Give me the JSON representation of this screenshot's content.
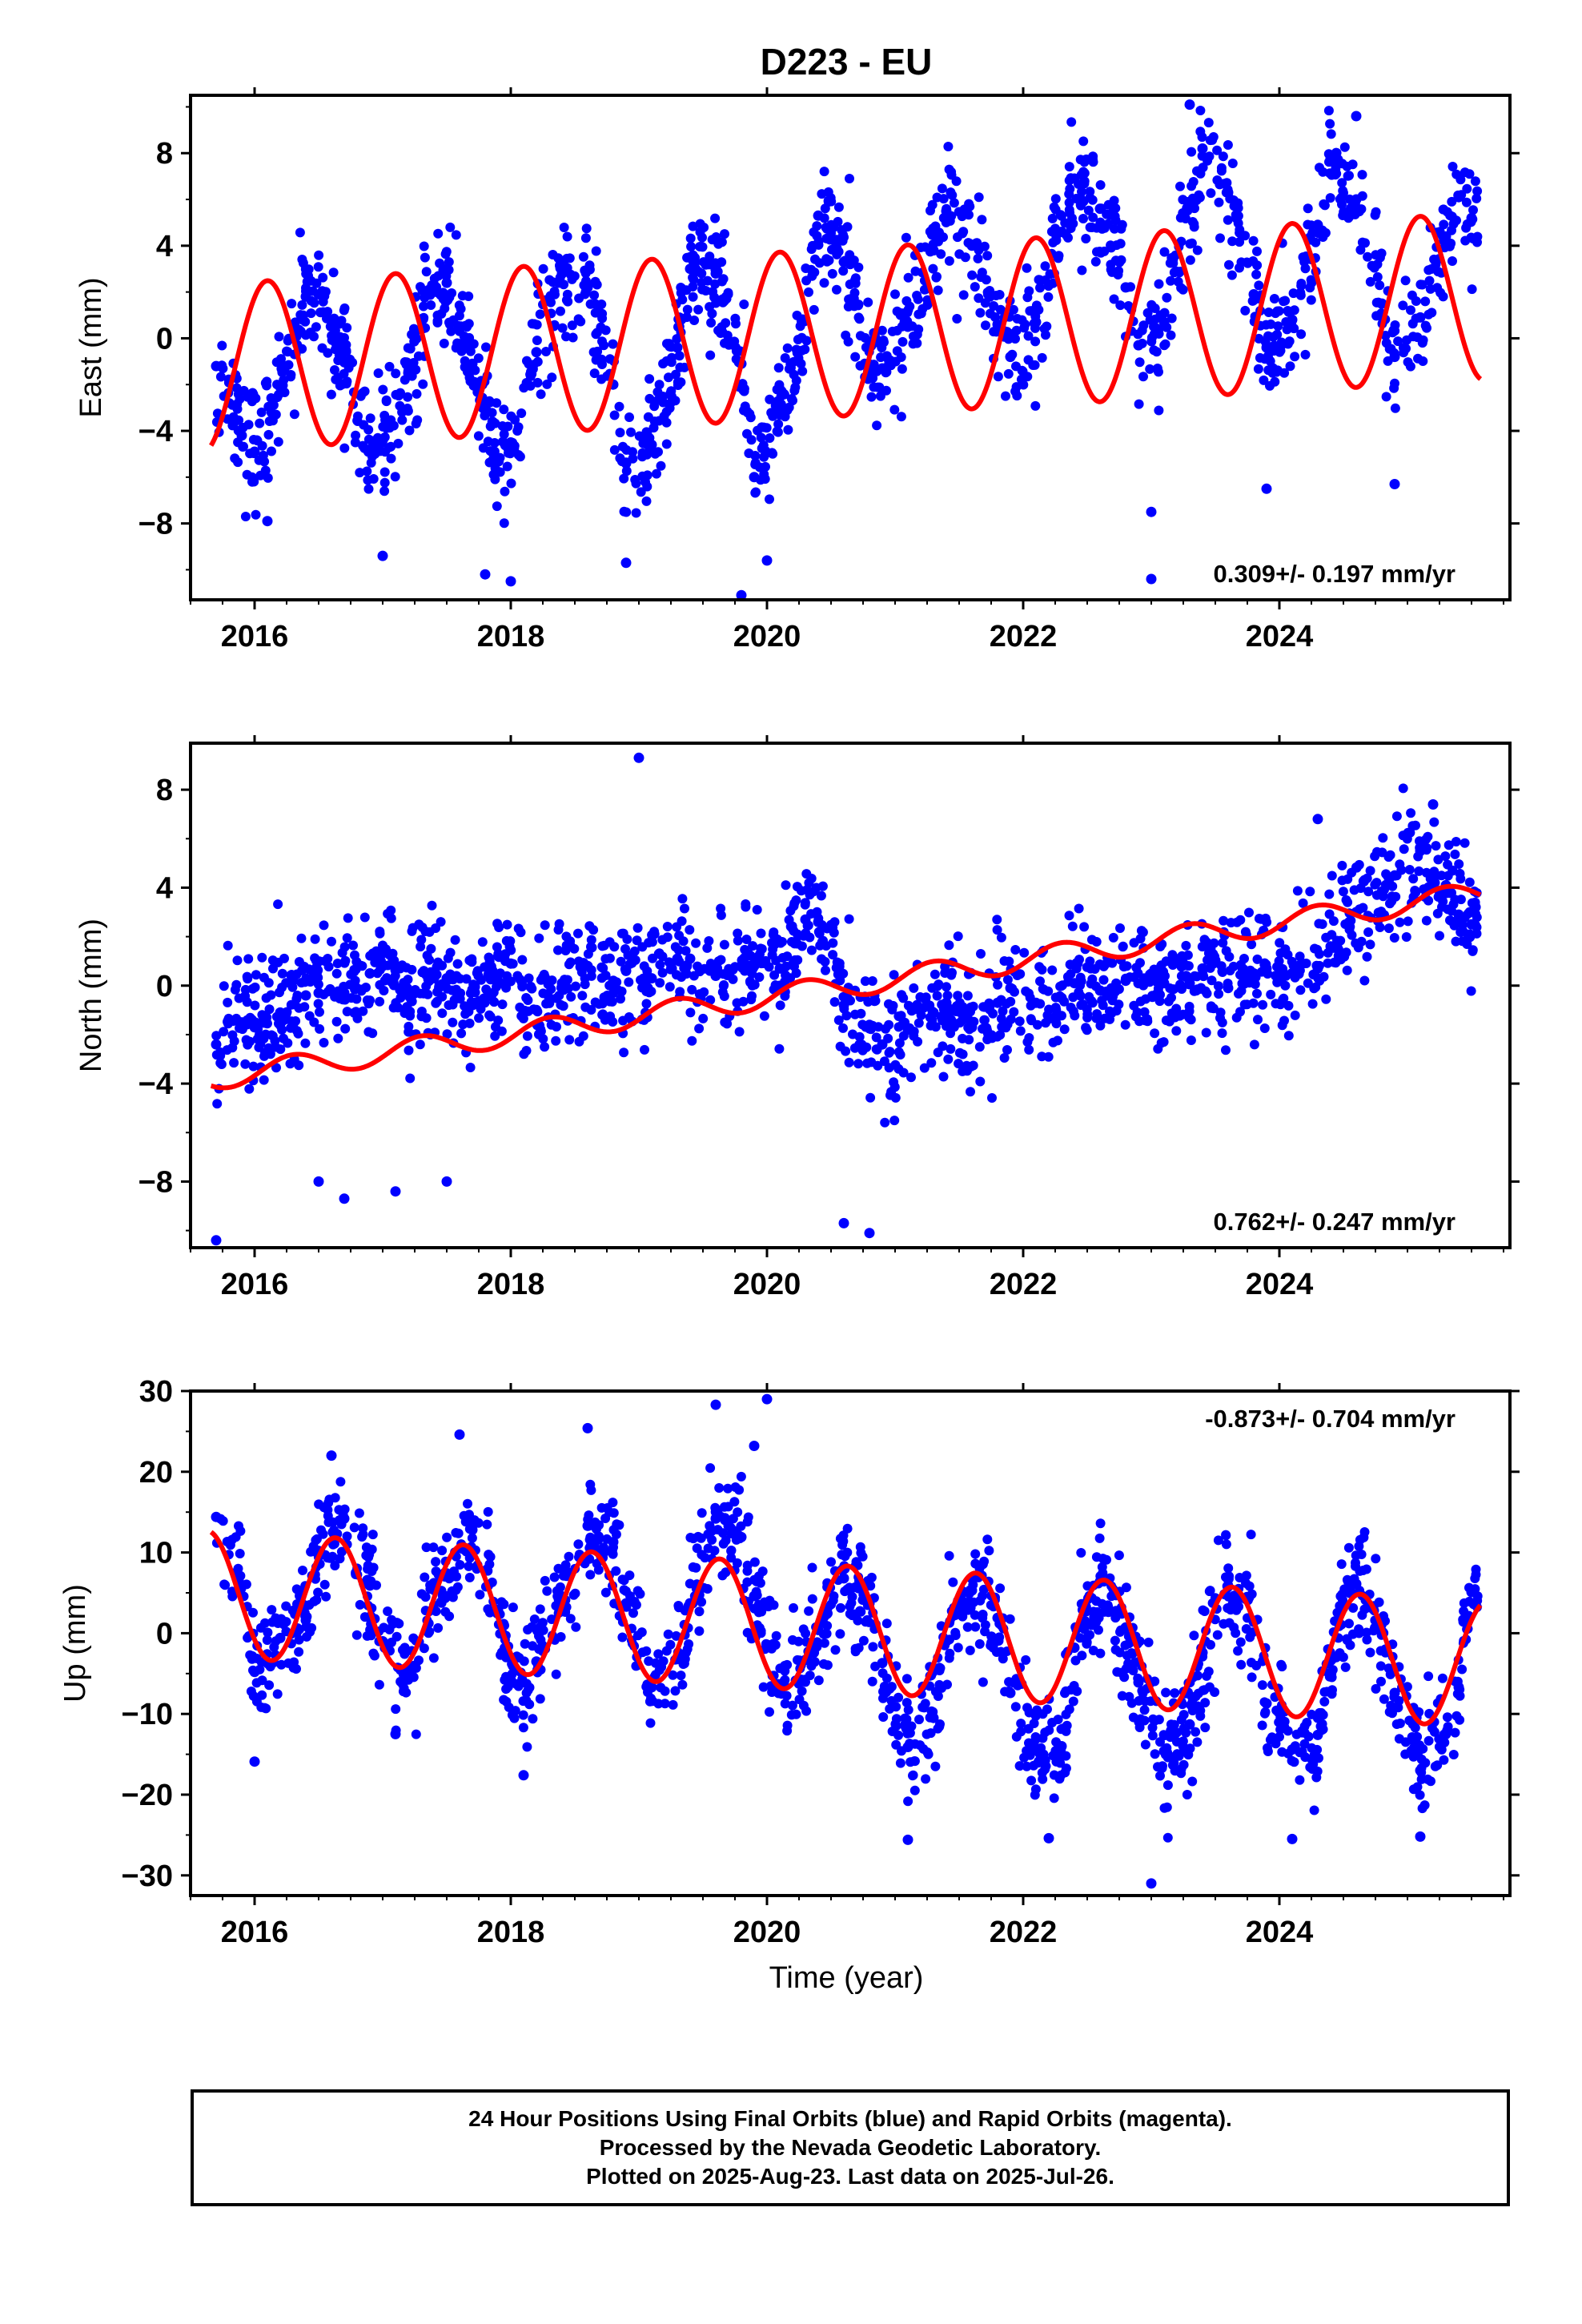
{
  "title": "D223 - EU",
  "xlabel": "Time (year)",
  "colors": {
    "points": "#0000ff",
    "fit": "#ff0000",
    "axes": "#000000"
  },
  "footer": {
    "line1": "24 Hour Positions Using Final Orbits (blue) and Rapid Orbits (magenta).",
    "line2": "Processed by the Nevada Geodetic Laboratory.",
    "line3": "Plotted on 2025-Aug-23. Last data on 2025-Jul-26."
  },
  "chart_data": [
    {
      "type": "scatter",
      "component": "east",
      "ylabel": "East (mm)",
      "xlim": [
        2015.5,
        2025.8
      ],
      "ylim": [
        -11.3,
        10.5
      ],
      "xticks": [
        2016,
        2018,
        2020,
        2022,
        2024
      ],
      "yticks": [
        -8,
        -4,
        0,
        4,
        8
      ],
      "rate_text": "0.309+/- 0.197 mm/yr",
      "rate_position": "bottom-right",
      "grid": false,
      "fit_model": {
        "trend_offset": -1.26,
        "trend_slope": 0.309,
        "t0": 2015.68,
        "amp": [
          -3.62,
          -3.62
        ],
        "phase": [
          0.6,
          0.6
        ],
        "decimate": 1.0
      },
      "series": [
        {
          "values": [
            [
              2015.7,
              -1.2
            ],
            [
              2015.9,
              -4.2
            ],
            [
              2016.0,
              -4.9
            ],
            [
              2016.2,
              -2.1
            ],
            [
              2016.4,
              1.8
            ],
            [
              2016.5,
              1.9
            ],
            [
              2016.7,
              -1.0
            ],
            [
              2016.9,
              -4.8
            ],
            [
              2017.0,
              -4.4
            ],
            [
              2017.2,
              -1.5
            ],
            [
              2017.4,
              2.3
            ],
            [
              2017.5,
              2.4
            ],
            [
              2017.7,
              -1.1
            ],
            [
              2017.9,
              -5.2
            ],
            [
              2018.0,
              -4.5
            ],
            [
              2018.2,
              -0.6
            ],
            [
              2018.4,
              2.8
            ],
            [
              2018.6,
              2.2
            ],
            [
              2018.8,
              -2.0
            ],
            [
              2018.9,
              -5.4
            ],
            [
              2019.1,
              -4.6
            ],
            [
              2019.3,
              -0.4
            ],
            [
              2019.4,
              3.0
            ],
            [
              2019.6,
              2.8
            ],
            [
              2019.8,
              -1.1
            ],
            [
              2019.9,
              -6.0
            ],
            [
              2020.1,
              -3.3
            ],
            [
              2020.3,
              0.8
            ],
            [
              2020.4,
              5.3
            ],
            [
              2020.6,
              3.3
            ],
            [
              2020.8,
              -0.4
            ],
            [
              2020.9,
              -1.3
            ],
            [
              2021.1,
              0.5
            ],
            [
              2021.3,
              3.8
            ],
            [
              2021.4,
              5.5
            ],
            [
              2021.6,
              4.0
            ],
            [
              2021.8,
              0.6
            ],
            [
              2021.9,
              -0.8
            ],
            [
              2022.1,
              0.7
            ],
            [
              2022.3,
              4.6
            ],
            [
              2022.4,
              6.9
            ],
            [
              2022.6,
              5.6
            ],
            [
              2022.8,
              2.2
            ],
            [
              2022.9,
              -0.3
            ],
            [
              2023.1,
              0.7
            ],
            [
              2023.3,
              5.7
            ],
            [
              2023.4,
              8.2
            ],
            [
              2023.6,
              6.3
            ],
            [
              2023.8,
              1.9
            ],
            [
              2023.9,
              -0.4
            ],
            [
              2024.1,
              0.8
            ],
            [
              2024.3,
              4.9
            ],
            [
              2024.4,
              7.8
            ],
            [
              2024.6,
              6.0
            ],
            [
              2024.8,
              1.5
            ],
            [
              2024.9,
              -0.8
            ],
            [
              2025.1,
              0.9
            ],
            [
              2025.3,
              4.4
            ],
            [
              2025.4,
              6.1
            ],
            [
              2025.5,
              5.2
            ],
            [
              2016.1,
              -7.9
            ],
            [
              2017.0,
              -9.4
            ],
            [
              2017.8,
              -10.2
            ],
            [
              2018.0,
              -10.5
            ],
            [
              2018.9,
              -9.7
            ],
            [
              2019.8,
              -11.1
            ],
            [
              2020.0,
              -9.6
            ],
            [
              2023.0,
              -7.5
            ],
            [
              2023.0,
              -10.4
            ],
            [
              2023.9,
              -6.5
            ],
            [
              2024.9,
              -6.3
            ],
            [
              2019.4,
              3.5
            ],
            [
              2023.3,
              10.1
            ],
            [
              2024.6,
              9.6
            ]
          ]
        }
      ]
    },
    {
      "type": "scatter",
      "component": "north",
      "ylabel": "North (mm)",
      "xlim": [
        2015.5,
        2025.8
      ],
      "ylim": [
        -10.7,
        9.9
      ],
      "xticks": [
        2016,
        2018,
        2020,
        2022,
        2024
      ],
      "yticks": [
        -8,
        -4,
        0,
        4,
        8
      ],
      "rate_text": "0.762+/- 0.247 mm/yr",
      "rate_position": "bottom-right",
      "grid": false,
      "fit_model": {
        "trend_offset": -3.77,
        "trend_slope": 0.762,
        "t0": 2015.68,
        "amp": [
          -0.48,
          -0.48
        ],
        "phase": [
          0.8,
          0.8
        ],
        "decimate": 1.0
      },
      "series": [
        {
          "values": [
            [
              2015.7,
              -2.4
            ],
            [
              2015.9,
              -1.5
            ],
            [
              2016.0,
              -1.7
            ],
            [
              2016.2,
              -1.1
            ],
            [
              2016.4,
              -0.4
            ],
            [
              2016.5,
              -0.3
            ],
            [
              2016.7,
              -0.3
            ],
            [
              2016.9,
              0.5
            ],
            [
              2017.0,
              0.8
            ],
            [
              2017.2,
              -0.4
            ],
            [
              2017.4,
              0.3
            ],
            [
              2017.5,
              0.3
            ],
            [
              2017.7,
              -0.8
            ],
            [
              2017.9,
              0.2
            ],
            [
              2018.0,
              0.9
            ],
            [
              2018.2,
              -1.0
            ],
            [
              2018.4,
              0.1
            ],
            [
              2018.6,
              0.8
            ],
            [
              2018.8,
              0.2
            ],
            [
              2018.9,
              0.6
            ],
            [
              2019.1,
              0.3
            ],
            [
              2019.3,
              1.1
            ],
            [
              2019.4,
              1.1
            ],
            [
              2019.6,
              0.4
            ],
            [
              2019.8,
              0.8
            ],
            [
              2019.9,
              0.8
            ],
            [
              2020.1,
              0.7
            ],
            [
              2020.3,
              2.7
            ],
            [
              2020.4,
              2.6
            ],
            [
              2020.6,
              -0.8
            ],
            [
              2020.8,
              -1.6
            ],
            [
              2020.9,
              -2.4
            ],
            [
              2021.1,
              -1.8
            ],
            [
              2021.3,
              -1.1
            ],
            [
              2021.4,
              -0.7
            ],
            [
              2021.6,
              -1.7
            ],
            [
              2021.8,
              -0.7
            ],
            [
              2021.9,
              -0.1
            ],
            [
              2022.1,
              -0.7
            ],
            [
              2022.3,
              -0.5
            ],
            [
              2022.4,
              0.1
            ],
            [
              2022.6,
              -0.2
            ],
            [
              2022.8,
              0.2
            ],
            [
              2022.9,
              0.1
            ],
            [
              2023.1,
              0.1
            ],
            [
              2023.3,
              0.1
            ],
            [
              2023.4,
              0.7
            ],
            [
              2023.6,
              -0.1
            ],
            [
              2023.8,
              0.5
            ],
            [
              2023.9,
              0.7
            ],
            [
              2024.1,
              0.5
            ],
            [
              2024.3,
              0.7
            ],
            [
              2024.4,
              1.6
            ],
            [
              2024.6,
              3.0
            ],
            [
              2024.8,
              3.8
            ],
            [
              2024.9,
              4.5
            ],
            [
              2025.1,
              5.5
            ],
            [
              2025.3,
              4.1
            ],
            [
              2025.4,
              2.9
            ],
            [
              2025.5,
              2.5
            ],
            [
              2015.7,
              -10.4
            ],
            [
              2016.5,
              -8.0
            ],
            [
              2016.7,
              -8.7
            ],
            [
              2017.1,
              -8.4
            ],
            [
              2017.5,
              -8.0
            ],
            [
              2020.6,
              -9.7
            ],
            [
              2020.8,
              -10.1
            ],
            [
              2019.0,
              9.3
            ],
            [
              2024.3,
              6.8
            ],
            [
              2025.2,
              7.4
            ]
          ]
        }
      ]
    },
    {
      "type": "scatter",
      "component": "up",
      "ylabel": "Up (mm)",
      "xlim": [
        2015.5,
        2025.8
      ],
      "ylim": [
        -32.5,
        30.0
      ],
      "xticks": [
        2016,
        2018,
        2020,
        2022,
        2024
      ],
      "yticks": [
        -30,
        -20,
        -10,
        0,
        10,
        20,
        30
      ],
      "rate_text": "-0.873+/- 0.704 mm/yr",
      "rate_position": "top-right",
      "grid": false,
      "fit_model": {
        "trend_offset": 4.83,
        "trend_slope": -0.873,
        "t0": 2015.68,
        "amp": [
          7.82,
          7.82
        ],
        "phase": [
          0.63,
          0.63
        ],
        "decimate": 1.0
      },
      "series": [
        {
          "values": [
            [
              2015.7,
              14.4
            ],
            [
              2015.9,
              5.9
            ],
            [
              2016.0,
              -4.8
            ],
            [
              2016.2,
              -0.6
            ],
            [
              2016.4,
              1.6
            ],
            [
              2016.5,
              10.2
            ],
            [
              2016.7,
              14.2
            ],
            [
              2016.9,
              5.9
            ],
            [
              2017.0,
              -1.0
            ],
            [
              2017.2,
              -5.0
            ],
            [
              2017.4,
              6.2
            ],
            [
              2017.5,
              7.4
            ],
            [
              2017.7,
              12.8
            ],
            [
              2017.9,
              2.9
            ],
            [
              2018.0,
              -5.8
            ],
            [
              2018.2,
              -3.5
            ],
            [
              2018.4,
              4.0
            ],
            [
              2018.6,
              13.3
            ],
            [
              2018.8,
              11.3
            ],
            [
              2018.9,
              3.7
            ],
            [
              2019.1,
              -6.7
            ],
            [
              2019.3,
              -3.2
            ],
            [
              2019.4,
              3.6
            ],
            [
              2019.6,
              14.2
            ],
            [
              2019.8,
              11.9
            ],
            [
              2019.9,
              4.6
            ],
            [
              2020.1,
              -7.1
            ],
            [
              2020.3,
              -3.3
            ],
            [
              2020.4,
              0.4
            ],
            [
              2020.6,
              6.8
            ],
            [
              2020.8,
              3.7
            ],
            [
              2020.9,
              -3.7
            ],
            [
              2021.1,
              -14.1
            ],
            [
              2021.3,
              -10.5
            ],
            [
              2021.4,
              -1.0
            ],
            [
              2021.6,
              5.3
            ],
            [
              2021.8,
              1.9
            ],
            [
              2021.9,
              -7.4
            ],
            [
              2022.1,
              -14.5
            ],
            [
              2022.3,
              -14.0
            ],
            [
              2022.4,
              -1.8
            ],
            [
              2022.6,
              6.4
            ],
            [
              2022.8,
              0.7
            ],
            [
              2022.9,
              -6.1
            ],
            [
              2023.1,
              -14.6
            ],
            [
              2023.3,
              -11.3
            ],
            [
              2023.4,
              -2.4
            ],
            [
              2023.6,
              6.7
            ],
            [
              2023.8,
              1.4
            ],
            [
              2023.9,
              -8.7
            ],
            [
              2024.1,
              -14.4
            ],
            [
              2024.3,
              -12.6
            ],
            [
              2024.4,
              -3.4
            ],
            [
              2024.6,
              6.1
            ],
            [
              2024.8,
              0.2
            ],
            [
              2024.9,
              -7.4
            ],
            [
              2025.1,
              -17.0
            ],
            [
              2025.3,
              -12.5
            ],
            [
              2025.4,
              -6.7
            ],
            [
              2025.5,
              5.1
            ],
            [
              2016.0,
              -15.9
            ],
            [
              2017.1,
              -12.5
            ],
            [
              2018.1,
              -17.6
            ],
            [
              2021.1,
              -25.6
            ],
            [
              2022.2,
              -25.4
            ],
            [
              2023.0,
              -31.0
            ],
            [
              2024.1,
              -25.5
            ],
            [
              2025.1,
              -25.2
            ],
            [
              2016.6,
              22.0
            ],
            [
              2017.6,
              24.6
            ],
            [
              2018.6,
              25.4
            ],
            [
              2019.6,
              28.3
            ],
            [
              2020.0,
              29.0
            ],
            [
              2019.9,
              23.2
            ]
          ]
        }
      ]
    }
  ]
}
